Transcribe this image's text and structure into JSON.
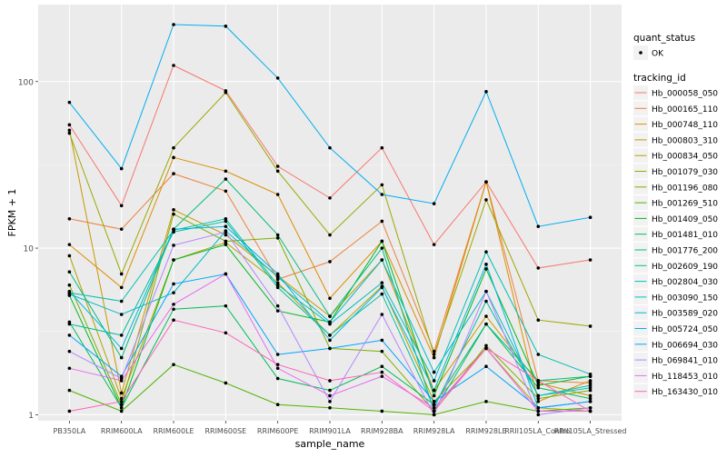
{
  "chart_data": {
    "type": "line",
    "xlabel": "sample_name",
    "ylabel": "FPKM + 1",
    "y_scale": "log10",
    "ylim": [
      0.92,
      290
    ],
    "y_ticks": [
      1,
      10,
      100
    ],
    "y_tick_labels": [
      "1",
      "10",
      "100"
    ],
    "categories": [
      "PB350LA",
      "RRIM600LA",
      "RRIM600LE",
      "RRIM600SE",
      "RRIM600PE",
      "RRIM901LA",
      "RRIM928BA",
      "RRIM928LA",
      "RRIM928LE",
      "RRII105LA_Control",
      "RRII105LA_Stressed"
    ],
    "x_tick_labels": [
      "PB350LA",
      "RRIM600LA",
      "RRIM600LE",
      "RRIM600SE",
      "RRIM600PE",
      "RRIM901LA",
      "RRIM928BA",
      "RRIM928LA",
      "RRIM928LE",
      "RRII105LA_Control",
      "RRII105LA_Stressed"
    ],
    "grid": true,
    "background": "#ebebeb",
    "point_color": "#000000",
    "legend": {
      "position": "right",
      "shape_title": "quant_status",
      "shape_items": [
        "OK"
      ],
      "color_title": "tracking_id"
    },
    "series": [
      {
        "name": "Hb_000058_050",
        "color": "#F8766D",
        "values": [
          55,
          18,
          125,
          88,
          31,
          20,
          40,
          10.5,
          25,
          7.6,
          8.5
        ]
      },
      {
        "name": "Hb_000165_110",
        "color": "#EC823C",
        "values": [
          15,
          13,
          28,
          22,
          6.5,
          8.3,
          14.5,
          2.4,
          25,
          1.6,
          1.55
        ]
      },
      {
        "name": "Hb_000748_110",
        "color": "#DD8D00",
        "values": [
          10.5,
          5.8,
          35,
          29,
          21,
          5,
          11,
          2.2,
          25,
          1.2,
          1.6
        ]
      },
      {
        "name": "Hb_000803_310",
        "color": "#CA9700",
        "values": [
          51,
          1.35,
          17,
          12,
          6.8,
          3.9,
          8.5,
          1.4,
          3.9,
          1.55,
          1.3
        ]
      },
      {
        "name": "Hb_000834_050",
        "color": "#B4A000",
        "values": [
          9,
          1.25,
          8.5,
          10.8,
          6.2,
          3,
          5.9,
          1.2,
          2.5,
          1.1,
          1.05
        ]
      },
      {
        "name": "Hb_001079_030",
        "color": "#9BA800",
        "values": [
          49,
          7,
          40,
          86,
          29,
          12,
          24,
          2.3,
          19.5,
          3.7,
          3.4
        ]
      },
      {
        "name": "Hb_001196_080",
        "color": "#7CAE00",
        "values": [
          6,
          1.15,
          16,
          11,
          11.5,
          2.5,
          2.4,
          1.05,
          2.6,
          1.25,
          1.4
        ]
      },
      {
        "name": "Hb_001269_510",
        "color": "#4EB400",
        "values": [
          1.4,
          1.05,
          2,
          1.55,
          1.15,
          1.1,
          1.05,
          1,
          1.2,
          1.05,
          1.1
        ]
      },
      {
        "name": "Hb_001409_050",
        "color": "#00B81F",
        "values": [
          5.2,
          1.1,
          8.5,
          10.5,
          4.2,
          3.6,
          11,
          1.3,
          7.5,
          1.5,
          1.7
        ]
      },
      {
        "name": "Hb_001481_010",
        "color": "#00BC59",
        "values": [
          3.6,
          1.1,
          4.3,
          4.5,
          1.65,
          1.4,
          1.95,
          1.15,
          3.5,
          1.45,
          1.25
        ]
      },
      {
        "name": "Hb_001776_200",
        "color": "#00BE7D",
        "values": [
          7.2,
          2.2,
          13,
          26,
          12,
          3.9,
          10,
          1.05,
          3.5,
          1.6,
          1.7
        ]
      },
      {
        "name": "Hb_002609_190",
        "color": "#00C09B",
        "values": [
          3.5,
          3,
          12.5,
          14.5,
          5.8,
          3,
          5.3,
          1.1,
          4.8,
          1.3,
          1.5
        ]
      },
      {
        "name": "Hb_002804_030",
        "color": "#00C0B4",
        "values": [
          5.4,
          4.8,
          12.8,
          15,
          6,
          3.5,
          6.2,
          1.6,
          9.5,
          2.3,
          1.75
        ]
      },
      {
        "name": "Hb_003090_150",
        "color": "#00BDCB",
        "values": [
          5.3,
          4,
          5.4,
          12.7,
          6.7,
          3.6,
          8.5,
          1.8,
          5.5,
          1.3,
          1.45
        ]
      },
      {
        "name": "Hb_003589_020",
        "color": "#00B7DE",
        "values": [
          5.5,
          2.5,
          13,
          13.5,
          7,
          2.8,
          5.8,
          1.4,
          8,
          1.1,
          1.2
        ]
      },
      {
        "name": "Hb_005724_050",
        "color": "#00AEEF",
        "values": [
          75,
          30,
          220,
          215,
          105,
          40,
          21,
          18.5,
          87,
          13.5,
          15.3
        ]
      },
      {
        "name": "Hb_006694_030",
        "color": "#00A4FB",
        "values": [
          3,
          1.7,
          6.1,
          7,
          2.3,
          2.5,
          2.8,
          1.2,
          1.95,
          1.1,
          1.2
        ]
      },
      {
        "name": "Hb_069841_010",
        "color": "#B486FF",
        "values": [
          2.4,
          1.65,
          10.4,
          12.5,
          4.5,
          1.2,
          4,
          1,
          5.5,
          1,
          1.1
        ]
      },
      {
        "name": "Hb_118453_010",
        "color": "#E76BF3",
        "values": [
          1.9,
          1.6,
          4.6,
          7,
          1.9,
          1.3,
          1.7,
          1.1,
          2.5,
          1.05,
          1.05
        ]
      },
      {
        "name": "Hb_163430_010",
        "color": "#FF62BC",
        "values": [
          1.05,
          1.2,
          3.7,
          3.1,
          2,
          1.6,
          1.8,
          1.05,
          2.5,
          1.6,
          1.05
        ]
      }
    ]
  },
  "legend_swatch_colors": [
    "#F8766D",
    "#EC823C",
    "#DD8D00",
    "#CA9700",
    "#B4A000",
    "#9BA800",
    "#7CAE00",
    "#4EB400",
    "#00B81F",
    "#00BC59",
    "#00BE7D",
    "#00C09B",
    "#00C0B4",
    "#00BDCB",
    "#00B7DE",
    "#00AEEF",
    "#00A4FB",
    "#B486FF",
    "#E76BF3",
    "#FF62BC"
  ]
}
